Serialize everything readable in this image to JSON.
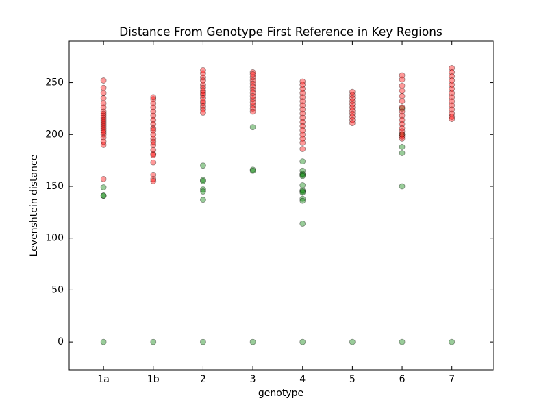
{
  "chart_data": {
    "type": "scatter",
    "title": "Distance From Genotype First Reference in Key Regions",
    "x_label": "genotype",
    "y_label": "Levenshtein distance",
    "categories": [
      "1a",
      "1b",
      "2",
      "3",
      "4",
      "5",
      "6",
      "7"
    ],
    "ylim": [
      -27,
      290
    ],
    "yticks": [
      0,
      50,
      100,
      150,
      200,
      250
    ],
    "series": [
      {
        "color": "#008000",
        "values": [
          [
            0,
            149,
            141,
            141
          ],
          [
            0
          ],
          [
            0,
            170,
            156,
            155,
            147,
            145,
            137
          ],
          [
            0,
            207,
            166,
            165
          ],
          [
            0,
            174,
            165,
            162,
            161,
            160,
            151,
            146,
            145,
            144,
            138,
            136,
            114
          ],
          [
            0
          ],
          [
            0,
            225,
            200,
            188,
            182,
            150
          ],
          [
            0
          ]
        ]
      },
      {
        "color": "#ff0000",
        "values": [
          [
            252,
            245,
            240,
            235,
            230,
            226,
            222,
            220,
            218,
            216,
            214,
            212,
            210,
            208,
            206,
            204,
            202,
            200,
            197,
            193,
            190,
            157
          ],
          [
            236,
            234,
            230,
            226,
            222,
            218,
            214,
            210,
            206,
            204,
            200,
            196,
            193,
            190,
            185,
            181,
            180,
            173,
            161,
            157,
            155
          ],
          [
            262,
            259,
            255,
            252,
            248,
            245,
            242,
            240,
            238,
            235,
            232,
            230,
            227,
            224,
            221
          ],
          [
            260,
            258,
            255,
            252,
            249,
            246,
            243,
            240,
            237,
            234,
            231,
            228,
            225,
            222
          ],
          [
            251,
            248,
            244,
            240,
            236,
            232,
            228,
            224,
            220,
            216,
            212,
            208,
            204,
            200,
            196,
            192,
            186
          ],
          [
            241,
            238,
            235,
            232,
            229,
            226,
            223,
            220,
            217,
            214,
            211
          ],
          [
            257,
            253,
            247,
            242,
            237,
            232,
            226,
            222,
            218,
            214,
            210,
            206,
            203,
            200,
            198,
            196
          ],
          [
            264,
            260,
            256,
            252,
            248,
            244,
            240,
            236,
            232,
            228,
            224,
            220,
            217,
            215
          ]
        ]
      }
    ]
  }
}
